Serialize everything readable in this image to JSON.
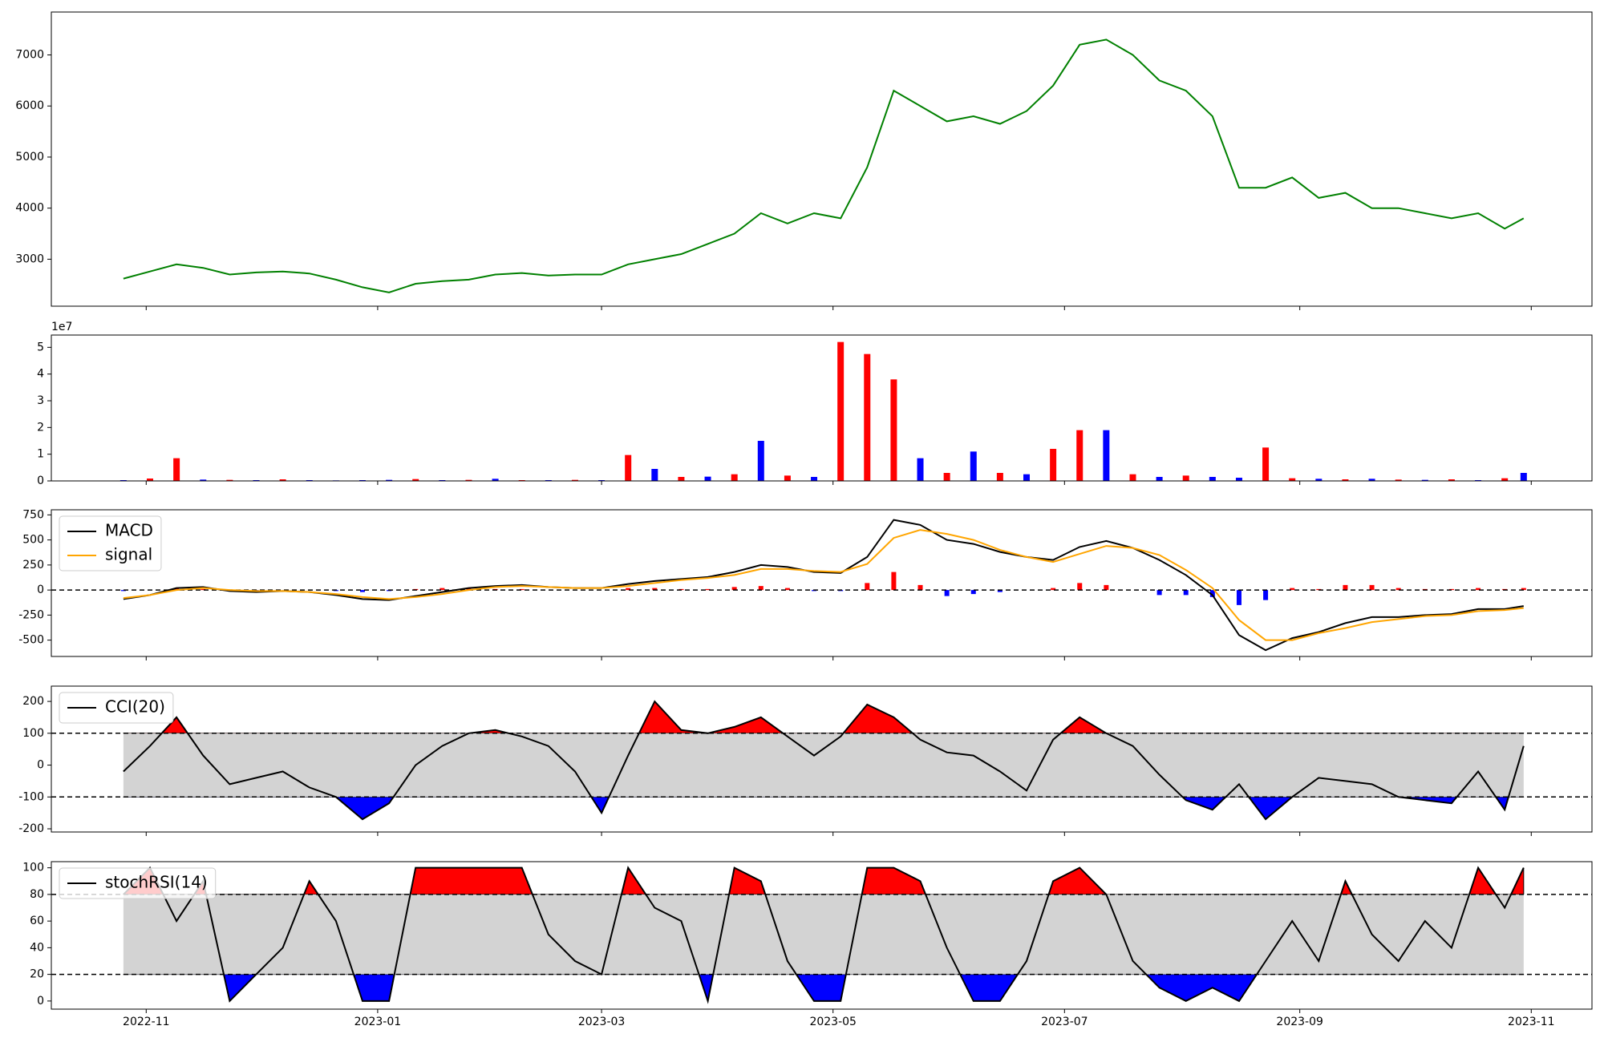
{
  "chart_data": [
    {
      "type": "line",
      "x": [
        "2022-10-26",
        "2022-11-02",
        "2022-11-09",
        "2022-11-16",
        "2022-11-23",
        "2022-11-30",
        "2022-12-07",
        "2022-12-14",
        "2022-12-21",
        "2022-12-28",
        "2023-01-04",
        "2023-01-11",
        "2023-01-18",
        "2023-01-25",
        "2023-02-01",
        "2023-02-08",
        "2023-02-15",
        "2023-02-22",
        "2023-03-01",
        "2023-03-08",
        "2023-03-15",
        "2023-03-22",
        "2023-03-29",
        "2023-04-05",
        "2023-04-12",
        "2023-04-19",
        "2023-04-26",
        "2023-05-03",
        "2023-05-10",
        "2023-05-17",
        "2023-05-24",
        "2023-05-31",
        "2023-06-07",
        "2023-06-14",
        "2023-06-21",
        "2023-06-28",
        "2023-07-05",
        "2023-07-12",
        "2023-07-19",
        "2023-07-26",
        "2023-08-02",
        "2023-08-09",
        "2023-08-16",
        "2023-08-23",
        "2023-08-30",
        "2023-09-06",
        "2023-09-13",
        "2023-09-20",
        "2023-09-27",
        "2023-10-04",
        "2023-10-11",
        "2023-10-18",
        "2023-10-25",
        "2023-10-30"
      ],
      "xlim": [
        "2022-10-07",
        "2023-11-17"
      ],
      "series": [
        {
          "color": "#008000",
          "values": [
            2620,
            2760,
            2900,
            2830,
            2700,
            2740,
            2760,
            2720,
            2600,
            2450,
            2350,
            2520,
            2570,
            2600,
            2700,
            2730,
            2680,
            2700,
            2700,
            2900,
            3000,
            3100,
            3300,
            3500,
            3900,
            3700,
            3900,
            3800,
            4800,
            6300,
            6000,
            5700,
            5800,
            5650,
            5900,
            6400,
            7200,
            7300,
            7000,
            6500,
            6300,
            5800,
            4400,
            4400,
            4600,
            4200,
            4300,
            4000,
            4000,
            3900,
            3800,
            3900,
            3600,
            3800
          ]
        }
      ],
      "ylim": [
        2080,
        7840
      ],
      "yticks": [
        3000,
        4000,
        5000,
        6000,
        7000
      ]
    },
    {
      "type": "bar",
      "values": [
        300000,
        900000,
        8500000,
        500000,
        400000,
        300000,
        600000,
        300000,
        200000,
        300000,
        400000,
        700000,
        300000,
        400000,
        800000,
        300000,
        300000,
        400000,
        300000,
        9700000,
        4500000,
        1500000,
        1600000,
        2500000,
        15000000,
        2000000,
        1500000,
        52000000,
        47500000,
        38000000,
        8500000,
        3000000,
        11000000,
        3000000,
        2500000,
        12000000,
        19000000,
        19000000,
        2500000,
        1500000,
        2000000,
        1500000,
        1200000,
        12500000,
        1000000,
        800000,
        600000,
        800000,
        500000,
        400000,
        600000,
        300000,
        1000000,
        3000000
      ],
      "colors": [
        "#0000ff",
        "#ff0000",
        "#ff0000",
        "#0000ff",
        "#ff0000",
        "#0000ff",
        "#ff0000",
        "#0000ff",
        "#0000ff",
        "#0000ff",
        "#0000ff",
        "#ff0000",
        "#0000ff",
        "#ff0000",
        "#0000ff",
        "#ff0000",
        "#0000ff",
        "#ff0000",
        "#0000ff",
        "#ff0000",
        "#0000ff",
        "#ff0000",
        "#0000ff",
        "#ff0000",
        "#0000ff",
        "#ff0000",
        "#0000ff",
        "#ff0000",
        "#ff0000",
        "#ff0000",
        "#0000ff",
        "#ff0000",
        "#0000ff",
        "#ff0000",
        "#0000ff",
        "#ff0000",
        "#ff0000",
        "#0000ff",
        "#ff0000",
        "#0000ff",
        "#ff0000",
        "#0000ff",
        "#0000ff",
        "#ff0000",
        "#ff0000",
        "#0000ff",
        "#ff0000",
        "#0000ff",
        "#ff0000",
        "#0000ff",
        "#ff0000",
        "#0000ff",
        "#ff0000",
        "#0000ff"
      ],
      "ylim": [
        0,
        54600000
      ],
      "yticks": [
        0,
        {
          "value": 10000000,
          "label": "1"
        },
        {
          "value": 20000000,
          "label": "2"
        },
        {
          "value": 30000000,
          "label": "3"
        },
        {
          "value": 40000000,
          "label": "4"
        },
        {
          "value": 50000000,
          "label": "5"
        }
      ],
      "offset_label": "1e7"
    },
    {
      "type": "macd",
      "series": [
        {
          "name": "MACD",
          "color": "#000000",
          "values": [
            -90,
            -50,
            20,
            30,
            -10,
            -20,
            -10,
            -20,
            -50,
            -90,
            -100,
            -60,
            -20,
            20,
            40,
            50,
            30,
            20,
            20,
            60,
            90,
            110,
            130,
            180,
            250,
            230,
            180,
            170,
            330,
            700,
            650,
            500,
            460,
            380,
            330,
            300,
            430,
            490,
            420,
            300,
            150,
            -50,
            -450,
            -600,
            -480,
            -420,
            -330,
            -270,
            -270,
            -250,
            -240,
            -190,
            -190,
            -160
          ]
        },
        {
          "name": "signal",
          "color": "#ffa500",
          "values": [
            -80,
            -50,
            0,
            20,
            0,
            -10,
            -10,
            -20,
            -40,
            -70,
            -90,
            -70,
            -40,
            0,
            30,
            40,
            30,
            20,
            20,
            40,
            70,
            100,
            120,
            150,
            210,
            210,
            190,
            180,
            260,
            520,
            600,
            560,
            500,
            400,
            330,
            280,
            360,
            440,
            420,
            350,
            200,
            20,
            -300,
            -500,
            -500,
            -430,
            -380,
            -320,
            -290,
            -260,
            -250,
            -210,
            -200,
            -180
          ]
        }
      ],
      "histogram": {
        "values": [
          -10,
          0,
          20,
          10,
          -10,
          -10,
          0,
          0,
          -10,
          -20,
          -10,
          10,
          20,
          20,
          10,
          10,
          0,
          0,
          0,
          20,
          20,
          10,
          10,
          30,
          40,
          20,
          -10,
          -10,
          70,
          180,
          50,
          -60,
          -40,
          -20,
          0,
          20,
          70,
          50,
          0,
          -50,
          -50,
          -70,
          -150,
          -100,
          20,
          10,
          50,
          50,
          20,
          10,
          10,
          20,
          10,
          20
        ],
        "up_color": "#ff0000",
        "down_color": "#0000ff"
      },
      "hline": 0,
      "ylim": [
        -663,
        801
      ],
      "yticks": [
        -500,
        -250,
        0,
        250,
        500,
        750
      ],
      "legend": "upper left"
    },
    {
      "type": "band",
      "series": [
        {
          "name": "CCI(20)",
          "color": "#000000",
          "values": [
            -20,
            60,
            150,
            30,
            -60,
            -40,
            -20,
            -70,
            -100,
            -170,
            -120,
            0,
            60,
            100,
            110,
            90,
            60,
            -20,
            -150,
            30,
            200,
            110,
            100,
            120,
            150,
            90,
            30,
            90,
            190,
            150,
            80,
            40,
            30,
            -20,
            -80,
            80,
            150,
            100,
            60,
            -30,
            -110,
            -140,
            -60,
            -170,
            -100,
            -40,
            -50,
            -60,
            -100,
            -110,
            -120,
            -20,
            -140,
            60
          ]
        }
      ],
      "bands": [
        -100,
        100
      ],
      "band_color": "#d3d3d3",
      "above_color": "#ff0000",
      "below_color": "#0000ff",
      "ylim": [
        -210,
        248
      ],
      "yticks": [
        -200,
        -100,
        0,
        100,
        200
      ],
      "legend": "upper left"
    },
    {
      "type": "band",
      "series": [
        {
          "name": "stochRSI(14)",
          "color": "#000000",
          "values": [
            80,
            100,
            60,
            90,
            0,
            20,
            40,
            90,
            60,
            0,
            0,
            100,
            100,
            100,
            100,
            100,
            50,
            30,
            20,
            100,
            70,
            60,
            0,
            100,
            90,
            30,
            0,
            0,
            100,
            100,
            90,
            40,
            0,
            0,
            30,
            90,
            100,
            80,
            30,
            10,
            0,
            10,
            0,
            30,
            60,
            30,
            90,
            50,
            30,
            60,
            40,
            100,
            70,
            100
          ]
        }
      ],
      "bands": [
        20,
        80
      ],
      "band_color": "#d3d3d3",
      "above_color": "#ff0000",
      "below_color": "#0000ff",
      "ylim": [
        -6.1,
        104.6
      ],
      "yticks": [
        0,
        20,
        40,
        60,
        80,
        100
      ],
      "legend": "upper left",
      "xticks": [
        {
          "value": "2022-11-01",
          "label": "2022-11"
        },
        {
          "value": "2023-01-01",
          "label": "2023-01"
        },
        {
          "value": "2023-03-01",
          "label": "2023-03"
        },
        {
          "value": "2023-05-01",
          "label": "2023-05"
        },
        {
          "value": "2023-07-01",
          "label": "2023-07"
        },
        {
          "value": "2023-09-01",
          "label": "2023-09"
        },
        {
          "value": "2023-11-01",
          "label": "2023-11"
        }
      ]
    }
  ]
}
